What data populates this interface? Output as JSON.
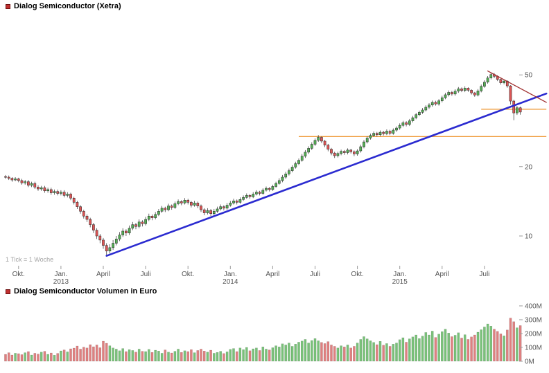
{
  "header": {
    "title": "Dialog Semiconductor (Xetra)",
    "legend_color": "#c03030"
  },
  "volume_header": {
    "title": "Dialog Semiconductor Volumen in Euro",
    "legend_color": "#c03030"
  },
  "footnote": "1 Tick = 1 Woche",
  "chart_data": {
    "type": "candlestick",
    "title": "Dialog Semiconductor (Xetra)",
    "subtitle_volume": "Dialog Semiconductor Volumen in Euro",
    "tick_interval": "1 Tick = 1 Woche",
    "price_axis": {
      "scale": "log",
      "ticks": [
        50,
        20,
        10
      ],
      "unit": "EUR"
    },
    "volume_axis": {
      "ticks": [
        {
          "label": "400M",
          "value": 400
        },
        {
          "label": "300M",
          "value": 300
        },
        {
          "label": "200M",
          "value": 200
        },
        {
          "label": "100M",
          "value": 100
        },
        {
          "label": "0M",
          "value": 0
        }
      ]
    },
    "x_labels": [
      {
        "label": "Okt.",
        "week": 4
      },
      {
        "label": "Jan.",
        "week": 17,
        "year": "2013"
      },
      {
        "label": "April",
        "week": 30
      },
      {
        "label": "Juli",
        "week": 43
      },
      {
        "label": "Okt.",
        "week": 56
      },
      {
        "label": "Jan.",
        "week": 69,
        "year": "2014"
      },
      {
        "label": "April",
        "week": 82
      },
      {
        "label": "Juli",
        "week": 95
      },
      {
        "label": "Okt.",
        "week": 108
      },
      {
        "label": "Jan.",
        "week": 121,
        "year": "2015"
      },
      {
        "label": "April",
        "week": 134
      },
      {
        "label": "Juli",
        "week": 147
      }
    ],
    "candle_format": "[open, high, low, close, volume_millions_eur]",
    "candles": [
      [
        18.1,
        18.4,
        17.7,
        18.0,
        50
      ],
      [
        18.0,
        18.3,
        17.5,
        17.8,
        62
      ],
      [
        17.8,
        18.0,
        17.2,
        17.5,
        45
      ],
      [
        17.5,
        18.0,
        17.3,
        17.7,
        58
      ],
      [
        17.7,
        17.9,
        17.1,
        17.4,
        55
      ],
      [
        17.4,
        17.7,
        16.7,
        17.0,
        48
      ],
      [
        17.0,
        17.5,
        16.7,
        17.2,
        62
      ],
      [
        17.2,
        17.5,
        16.3,
        16.6,
        70
      ],
      [
        16.6,
        17.2,
        16.3,
        16.9,
        45
      ],
      [
        16.9,
        17.2,
        16.0,
        16.3,
        58
      ],
      [
        16.3,
        16.6,
        15.7,
        16.0,
        52
      ],
      [
        16.0,
        16.5,
        15.7,
        16.2,
        66
      ],
      [
        16.2,
        16.5,
        15.4,
        15.7,
        72
      ],
      [
        15.7,
        16.2,
        15.4,
        15.9,
        50
      ],
      [
        15.9,
        16.2,
        15.1,
        15.4,
        60
      ],
      [
        15.4,
        15.9,
        15.1,
        15.6,
        44
      ],
      [
        15.6,
        15.9,
        15.0,
        15.3,
        57
      ],
      [
        15.3,
        15.8,
        15.0,
        15.5,
        75
      ],
      [
        15.5,
        15.8,
        14.7,
        15.0,
        82
      ],
      [
        15.0,
        15.5,
        14.7,
        15.2,
        68
      ],
      [
        15.2,
        15.4,
        14.3,
        14.6,
        90
      ],
      [
        14.6,
        14.8,
        13.7,
        14.0,
        95
      ],
      [
        14.0,
        14.2,
        13.1,
        13.4,
        110
      ],
      [
        13.4,
        13.6,
        12.5,
        12.8,
        88
      ],
      [
        12.8,
        13.0,
        11.9,
        12.2,
        102
      ],
      [
        12.2,
        12.4,
        11.5,
        11.8,
        96
      ],
      [
        11.8,
        12.0,
        10.9,
        11.2,
        120
      ],
      [
        11.2,
        11.4,
        10.3,
        10.6,
        105
      ],
      [
        10.6,
        10.8,
        9.7,
        10.0,
        118
      ],
      [
        10.0,
        10.2,
        9.3,
        9.6,
        98
      ],
      [
        9.6,
        9.8,
        8.8,
        9.1,
        145
      ],
      [
        9.1,
        9.3,
        8.2,
        8.6,
        130
      ],
      [
        8.6,
        9.2,
        8.4,
        8.9,
        112
      ],
      [
        8.9,
        9.6,
        8.7,
        9.3,
        96
      ],
      [
        9.3,
        10.0,
        9.1,
        9.7,
        88
      ],
      [
        9.7,
        10.4,
        9.5,
        10.1,
        76
      ],
      [
        10.1,
        10.8,
        9.9,
        10.5,
        92
      ],
      [
        10.5,
        10.7,
        10.0,
        10.3,
        70
      ],
      [
        10.3,
        11.1,
        10.1,
        10.8,
        84
      ],
      [
        10.8,
        11.5,
        10.6,
        11.2,
        78
      ],
      [
        11.2,
        11.4,
        10.7,
        11.0,
        66
      ],
      [
        11.0,
        11.8,
        10.8,
        11.5,
        88
      ],
      [
        11.5,
        11.7,
        11.0,
        11.3,
        72
      ],
      [
        11.3,
        12.1,
        11.1,
        11.8,
        70
      ],
      [
        11.8,
        12.5,
        11.6,
        12.2,
        86
      ],
      [
        12.2,
        12.4,
        11.7,
        12.0,
        64
      ],
      [
        12.0,
        12.7,
        11.8,
        12.4,
        80
      ],
      [
        12.4,
        13.1,
        12.2,
        12.8,
        74
      ],
      [
        12.8,
        13.5,
        12.6,
        13.2,
        58
      ],
      [
        13.2,
        13.4,
        12.7,
        13.0,
        82
      ],
      [
        13.0,
        13.8,
        12.8,
        13.5,
        66
      ],
      [
        13.5,
        13.7,
        13.0,
        13.3,
        60
      ],
      [
        13.3,
        14.1,
        13.1,
        13.8,
        72
      ],
      [
        13.8,
        14.4,
        13.6,
        14.1,
        88
      ],
      [
        14.1,
        14.3,
        13.6,
        13.9,
        64
      ],
      [
        13.9,
        14.6,
        13.7,
        14.3,
        76
      ],
      [
        14.3,
        14.5,
        13.7,
        14.0,
        70
      ],
      [
        14.0,
        14.2,
        13.3,
        13.6,
        84
      ],
      [
        13.6,
        14.2,
        13.4,
        13.9,
        62
      ],
      [
        13.9,
        14.1,
        13.2,
        13.5,
        78
      ],
      [
        13.5,
        13.7,
        12.7,
        13.0,
        88
      ],
      [
        13.0,
        13.2,
        12.3,
        12.6,
        74
      ],
      [
        12.6,
        13.2,
        12.4,
        12.9,
        66
      ],
      [
        12.9,
        13.1,
        12.2,
        12.5,
        80
      ],
      [
        12.5,
        13.1,
        12.3,
        12.8,
        58
      ],
      [
        12.8,
        13.4,
        12.6,
        13.1,
        64
      ],
      [
        13.1,
        13.7,
        12.9,
        13.4,
        72
      ],
      [
        13.4,
        13.6,
        12.9,
        13.2,
        56
      ],
      [
        13.2,
        13.9,
        13.0,
        13.6,
        68
      ],
      [
        13.6,
        14.2,
        13.4,
        13.9,
        86
      ],
      [
        13.9,
        14.5,
        13.7,
        14.2,
        92
      ],
      [
        14.2,
        14.4,
        13.7,
        14.0,
        70
      ],
      [
        14.0,
        14.7,
        13.8,
        14.4,
        96
      ],
      [
        14.4,
        15.0,
        14.2,
        14.7,
        84
      ],
      [
        14.7,
        15.3,
        14.5,
        15.0,
        100
      ],
      [
        15.0,
        15.2,
        14.5,
        14.8,
        76
      ],
      [
        14.8,
        15.5,
        14.6,
        15.2,
        90
      ],
      [
        15.2,
        15.8,
        15.0,
        15.5,
        96
      ],
      [
        15.5,
        15.7,
        15.0,
        15.3,
        78
      ],
      [
        15.3,
        16.1,
        15.1,
        15.8,
        104
      ],
      [
        15.8,
        16.4,
        15.6,
        16.1,
        88
      ],
      [
        16.1,
        16.3,
        15.6,
        15.9,
        82
      ],
      [
        15.9,
        16.7,
        15.7,
        16.4,
        98
      ],
      [
        16.4,
        17.2,
        16.2,
        16.9,
        112
      ],
      [
        16.9,
        17.8,
        16.7,
        17.4,
        104
      ],
      [
        17.4,
        18.4,
        17.1,
        18.0,
        126
      ],
      [
        18.0,
        19.0,
        17.7,
        18.6,
        118
      ],
      [
        18.6,
        19.6,
        18.3,
        19.2,
        132
      ],
      [
        19.2,
        20.3,
        18.9,
        19.9,
        108
      ],
      [
        19.9,
        21.0,
        19.6,
        20.6,
        124
      ],
      [
        20.6,
        21.7,
        20.3,
        21.3,
        138
      ],
      [
        21.3,
        22.7,
        21.0,
        22.2,
        146
      ],
      [
        22.2,
        23.6,
        21.8,
        23.1,
        158
      ],
      [
        23.1,
        24.5,
        22.7,
        24.0,
        132
      ],
      [
        24.0,
        25.5,
        23.6,
        25.0,
        150
      ],
      [
        25.0,
        26.5,
        24.6,
        26.0,
        164
      ],
      [
        26.0,
        27.4,
        25.6,
        26.8,
        148
      ],
      [
        26.8,
        27.1,
        25.3,
        25.8,
        136
      ],
      [
        25.8,
        26.1,
        24.3,
        24.8,
        128
      ],
      [
        24.8,
        25.1,
        23.3,
        23.8,
        142
      ],
      [
        23.8,
        24.1,
        22.4,
        22.9,
        118
      ],
      [
        22.9,
        23.2,
        21.8,
        22.3,
        108
      ],
      [
        22.3,
        23.2,
        21.9,
        22.8,
        96
      ],
      [
        22.8,
        23.7,
        22.4,
        23.3,
        112
      ],
      [
        23.3,
        23.6,
        22.5,
        23.0,
        104
      ],
      [
        23.0,
        24.0,
        22.6,
        23.6,
        118
      ],
      [
        23.6,
        23.9,
        22.8,
        23.2,
        96
      ],
      [
        23.2,
        23.5,
        22.2,
        22.7,
        108
      ],
      [
        22.7,
        23.8,
        22.3,
        23.4,
        132
      ],
      [
        23.4,
        24.9,
        23.0,
        24.4,
        158
      ],
      [
        24.4,
        26.1,
        24.0,
        25.6,
        178
      ],
      [
        25.6,
        27.1,
        25.2,
        26.6,
        162
      ],
      [
        26.6,
        27.8,
        26.2,
        27.3,
        148
      ],
      [
        27.3,
        28.4,
        26.9,
        27.9,
        136
      ],
      [
        27.9,
        28.3,
        27.0,
        27.5,
        120
      ],
      [
        27.5,
        28.7,
        27.1,
        28.2,
        144
      ],
      [
        28.2,
        28.6,
        27.3,
        27.8,
        116
      ],
      [
        27.8,
        29.0,
        27.4,
        28.5,
        128
      ],
      [
        28.5,
        28.9,
        27.4,
        27.9,
        108
      ],
      [
        27.9,
        29.3,
        27.5,
        28.8,
        124
      ],
      [
        28.8,
        29.9,
        28.3,
        29.4,
        132
      ],
      [
        29.4,
        30.8,
        28.9,
        30.2,
        156
      ],
      [
        30.2,
        31.6,
        29.7,
        31.0,
        170
      ],
      [
        31.0,
        31.5,
        29.9,
        30.5,
        138
      ],
      [
        30.5,
        32.2,
        30.0,
        31.6,
        162
      ],
      [
        31.6,
        33.2,
        31.1,
        32.6,
        176
      ],
      [
        32.6,
        34.2,
        32.1,
        33.6,
        190
      ],
      [
        33.6,
        35.0,
        33.1,
        34.4,
        164
      ],
      [
        34.4,
        35.9,
        33.9,
        35.2,
        182
      ],
      [
        35.2,
        36.9,
        34.7,
        36.2,
        208
      ],
      [
        36.2,
        37.7,
        35.6,
        37.0,
        190
      ],
      [
        37.0,
        38.7,
        36.4,
        38.0,
        218
      ],
      [
        38.0,
        38.6,
        36.8,
        37.4,
        172
      ],
      [
        37.4,
        39.3,
        36.8,
        38.6,
        196
      ],
      [
        38.6,
        40.6,
        38.0,
        39.8,
        214
      ],
      [
        39.8,
        41.8,
        39.2,
        41.0,
        232
      ],
      [
        41.0,
        42.8,
        40.3,
        42.0,
        204
      ],
      [
        42.0,
        42.6,
        40.6,
        41.3,
        178
      ],
      [
        41.3,
        43.3,
        40.6,
        42.5,
        188
      ],
      [
        42.5,
        44.3,
        41.8,
        43.5,
        206
      ],
      [
        43.5,
        44.1,
        42.1,
        42.8,
        168
      ],
      [
        42.8,
        44.6,
        42.1,
        43.8,
        192
      ],
      [
        43.8,
        44.2,
        42.2,
        42.9,
        158
      ],
      [
        42.9,
        43.3,
        41.1,
        41.8,
        176
      ],
      [
        41.8,
        42.2,
        40.2,
        40.9,
        190
      ],
      [
        40.9,
        43.4,
        40.3,
        42.6,
        210
      ],
      [
        42.6,
        45.4,
        42.0,
        44.6,
        228
      ],
      [
        44.6,
        47.4,
        44.0,
        46.5,
        248
      ],
      [
        46.5,
        49.4,
        45.8,
        48.5,
        270
      ],
      [
        48.5,
        51.2,
        47.8,
        50.2,
        254
      ],
      [
        50.2,
        50.9,
        48.4,
        49.3,
        232
      ],
      [
        49.3,
        49.8,
        47.0,
        47.8,
        216
      ],
      [
        47.8,
        48.2,
        45.4,
        46.2,
        198
      ],
      [
        46.2,
        47.7,
        45.5,
        47.0,
        184
      ],
      [
        47.0,
        47.4,
        44.0,
        44.8,
        226
      ],
      [
        44.8,
        45.1,
        37.2,
        38.5,
        312
      ],
      [
        38.5,
        39.0,
        31.8,
        34.2,
        286
      ],
      [
        34.2,
        36.7,
        33.5,
        36.0,
        242
      ],
      [
        36.0,
        36.4,
        33.6,
        34.5,
        258
      ]
    ],
    "trendlines": [
      {
        "name": "uptrend-support-line",
        "color": "#2b2bd0",
        "width": 2.6,
        "from_week": 31,
        "from_price": 8.2,
        "to_week": 166,
        "to_price": 41.5
      },
      {
        "name": "downtrend-resistance-line",
        "color": "#a03030",
        "width": 1.3,
        "from_week": 148,
        "from_price": 52,
        "to_week": 166,
        "to_price": 38
      }
    ],
    "h_lines": [
      {
        "name": "horizontal-level-upper",
        "price": 35.5,
        "from_week": 146,
        "to_week": 166,
        "color": "#ef9b3b"
      },
      {
        "name": "horizontal-level-lower",
        "price": 27,
        "from_week": 90,
        "to_week": 166,
        "color": "#ef9b3b"
      }
    ],
    "colors": {
      "up": "#55b055",
      "down": "#dd5555",
      "border": "#222222",
      "wick": "#444444",
      "vol_up": "#79c279",
      "vol_down": "#df8080"
    }
  }
}
